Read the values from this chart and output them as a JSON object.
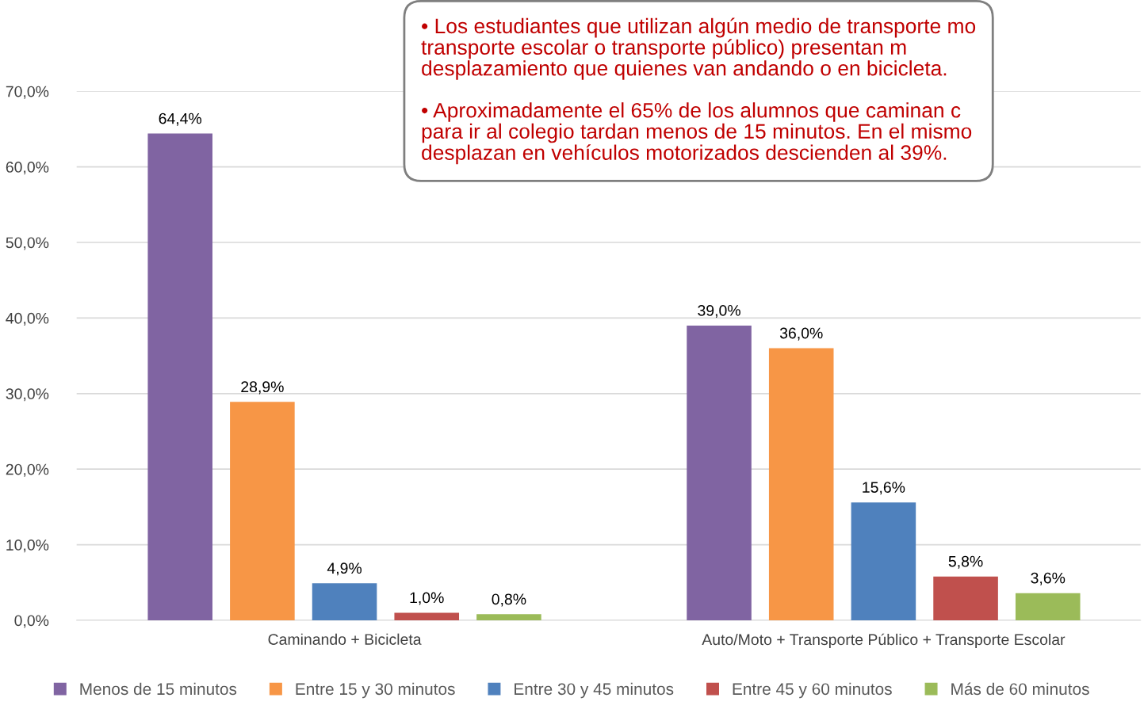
{
  "chart_data": {
    "type": "bar",
    "categories": [
      "Caminando + Bicicleta",
      "Auto/Moto + Transporte Público + Transporte Escolar"
    ],
    "series": [
      {
        "name": "Menos de 15 minutos",
        "color": "#8064a2",
        "values": [
          64.4,
          39.0
        ],
        "value_labels": [
          "64,4%",
          "39,0%"
        ]
      },
      {
        "name": "Entre 15 y 30 minutos",
        "color": "#f79646",
        "values": [
          28.9,
          36.0
        ],
        "value_labels": [
          "28,9%",
          "36,0%"
        ]
      },
      {
        "name": "Entre 30 y 45 minutos",
        "color": "#4f81bd",
        "values": [
          4.9,
          15.6
        ],
        "value_labels": [
          "4,9%",
          "15,6%"
        ]
      },
      {
        "name": "Entre 45 y 60 minutos",
        "color": "#c0504d",
        "values": [
          1.0,
          5.8
        ],
        "value_labels": [
          "1,0%",
          "5,8%"
        ]
      },
      {
        "name": "Más de 60 minutos",
        "color": "#9bbb59",
        "values": [
          0.8,
          3.6
        ],
        "value_labels": [
          "0,8%",
          "3,6%"
        ]
      }
    ],
    "ylim": [
      0,
      70
    ],
    "yticks": [
      {
        "value": 0,
        "label": "0,0%"
      },
      {
        "value": 10,
        "label": "10,0%"
      },
      {
        "value": 20,
        "label": "20,0%"
      },
      {
        "value": 30,
        "label": "30,0%"
      },
      {
        "value": 40,
        "label": "40,0%"
      },
      {
        "value": 50,
        "label": "50,0%"
      },
      {
        "value": 60,
        "label": "60,0%"
      },
      {
        "value": 70,
        "label": "70,0%"
      }
    ],
    "grid": "y",
    "legend": "bottom",
    "annotations": [
      "• Los estudiantes que utilizan algún medio de transporte mo\ntransporte escolar o transporte público) presentan m\ndesplazamiento que quienes van andando o en bicicleta.",
      "• Aproximadamente el 65% de los alumnos que caminan c\npara ir al colegio tardan menos de 15 minutos. En el mismo\ndesplazan en vehículos motorizados descienden al 39%."
    ]
  }
}
